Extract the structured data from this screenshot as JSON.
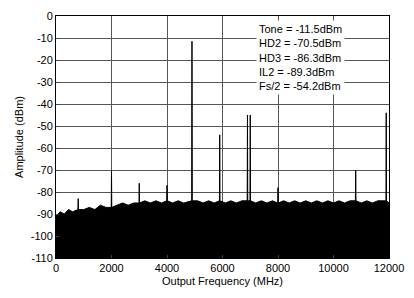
{
  "chart_data": {
    "type": "line",
    "x_label": "Output Frequency (MHz)",
    "y_label": "Amplitude (dBm)",
    "annotations": [
      "Tone = -11.5dBm",
      "HD2 = -70.5dBm",
      "HD3 = -86.3dBm",
      "IL2 = -89.3dBm",
      "Fs/2 = -54.2dBm"
    ],
    "color": "#000000",
    "grid": true,
    "xlim": [
      0,
      12000
    ],
    "xticks": [
      0,
      2000,
      4000,
      6000,
      8000,
      10000,
      12000
    ],
    "ylim": [
      -110,
      0
    ],
    "yticks": [
      -110,
      -100,
      -90,
      -80,
      -70,
      -60,
      -50,
      -40,
      -30,
      -20,
      -10,
      0
    ],
    "x": [
      0,
      150,
      300,
      450,
      600,
      790,
      800,
      810,
      1000,
      1200,
      1400,
      1600,
      1800,
      1990,
      2000,
      2010,
      2200,
      2400,
      2600,
      2800,
      2990,
      3000,
      3010,
      3200,
      3400,
      3600,
      3800,
      3990,
      4000,
      4010,
      4200,
      4400,
      4600,
      4890,
      4900,
      4910,
      5100,
      5300,
      5500,
      5700,
      5890,
      5900,
      5910,
      6100,
      6300,
      6500,
      6700,
      6890,
      6900,
      6910,
      6990,
      7000,
      7010,
      7200,
      7400,
      7600,
      7800,
      7990,
      8000,
      8010,
      8200,
      8400,
      8600,
      8800,
      9000,
      9200,
      9400,
      9600,
      9800,
      10000,
      10200,
      10400,
      10600,
      10790,
      10800,
      10810,
      11000,
      11200,
      11400,
      11600,
      11890,
      11900,
      11910,
      12000
    ],
    "values": [
      -91,
      -89,
      -90,
      -88,
      -89,
      -88,
      -83,
      -88,
      -88,
      -87,
      -88,
      -86,
      -87,
      -87,
      -70,
      -87,
      -86,
      -85,
      -86,
      -85,
      -85,
      -76,
      -85,
      -84,
      -85,
      -84,
      -85,
      -84,
      -77,
      -84,
      -85,
      -84,
      -85,
      -84,
      -11.5,
      -84,
      -84,
      -85,
      -84,
      -85,
      -84,
      -54,
      -84,
      -85,
      -84,
      -85,
      -84,
      -84,
      -45,
      -84,
      -84,
      -45,
      -84,
      -85,
      -84,
      -85,
      -84,
      -85,
      -78,
      -85,
      -84,
      -85,
      -84,
      -85,
      -84,
      -85,
      -84,
      -85,
      -84,
      -85,
      -84,
      -85,
      -84,
      -84,
      -70,
      -84,
      -85,
      -84,
      -85,
      -84,
      -84,
      -44,
      -84,
      -85
    ]
  }
}
